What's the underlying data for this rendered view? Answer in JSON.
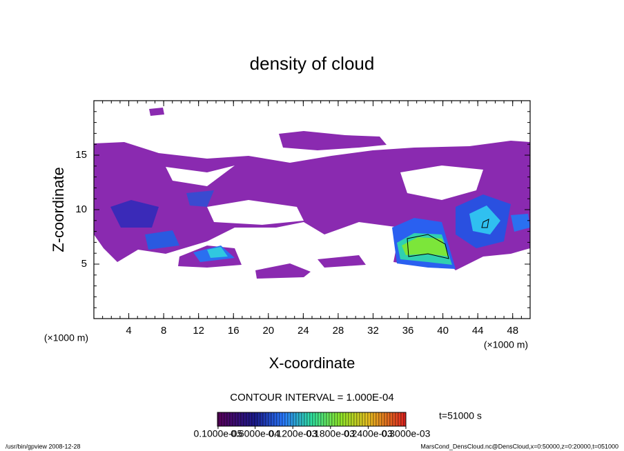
{
  "chart_data": {
    "type": "contour",
    "title": "density of cloud",
    "x_label": "X-coordinate",
    "y_label": "Z-coordinate",
    "x_unit_left": "(×1000 m)",
    "x_unit_right": "(×1000 m)",
    "xlim": [
      0,
      50
    ],
    "ylim": [
      0,
      20
    ],
    "xticks": [
      4,
      8,
      12,
      16,
      20,
      24,
      28,
      32,
      36,
      40,
      44,
      48
    ],
    "yticks": [
      5,
      10,
      15
    ],
    "contour_interval": "CONTOUR INTERVAL = 1.000E-04",
    "time_label": "t=51000 s",
    "colorbar": {
      "lim": [
        0,
        0.0003
      ],
      "ticks": [
        {
          "value": 1e-06,
          "label": "0.1000e-05"
        },
        {
          "value": 6e-05,
          "label": "0.6000e-04"
        },
        {
          "value": 0.00012,
          "label": "0.1200e-03"
        },
        {
          "value": 0.00018,
          "label": "0.1800e-03"
        },
        {
          "value": 0.00024,
          "label": "0.2400e-03"
        },
        {
          "value": 0.0003,
          "label": "0.3000e-03"
        }
      ]
    },
    "footer_left": "/usr/bin/gpview  2008-12-28",
    "footer_right": "MarsCond_DensCloud.nc@DensCloud,x=0:50000,z=0:20000,t=051000"
  }
}
